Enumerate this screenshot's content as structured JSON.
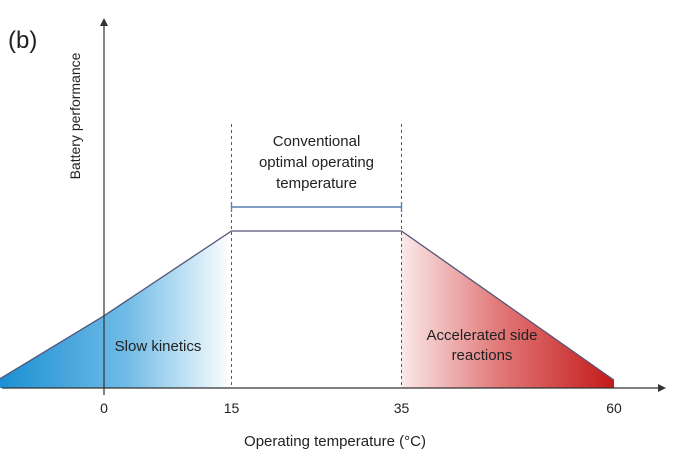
{
  "chart_data": {
    "type": "area",
    "panel_label": "(b)",
    "title": "",
    "xlabel": "Operating temperature (°C)",
    "ylabel": "Battery performance",
    "x_ticks": [
      "0",
      "15",
      "35",
      "60"
    ],
    "series": [
      {
        "x": [
          -12.5,
          0,
          15,
          35,
          60
        ],
        "y": [
          0.05,
          0.46,
          1.0,
          1.0,
          0.05
        ]
      }
    ],
    "regions": [
      {
        "label": "Slow kinetics",
        "from": -12.5,
        "to": 15,
        "color": "#1e90d0"
      },
      {
        "label": "Accelerated side reactions",
        "from": 35,
        "to": 60,
        "color": "#c81e1e"
      }
    ],
    "annotation": {
      "lines": [
        "Conventional",
        "optimal operating",
        "temperature"
      ],
      "from": 15,
      "to": 35
    },
    "colors": {
      "cold": "#1e90d0",
      "hot": "#c81e1e",
      "outline": "#555577",
      "axis": "#333333"
    }
  }
}
